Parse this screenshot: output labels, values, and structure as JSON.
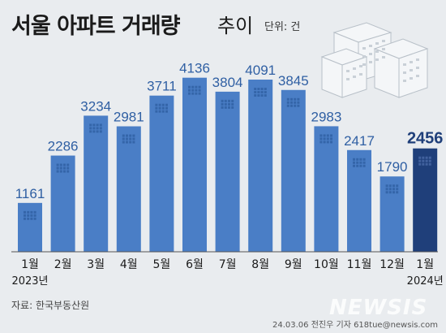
{
  "chart_data": {
    "type": "bar",
    "title": "서울 아파트 거래량",
    "subtitle": "추이",
    "unit": "단위: 건",
    "categories": [
      "1월",
      "2월",
      "3월",
      "4월",
      "5월",
      "6월",
      "7월",
      "8월",
      "9월",
      "10월",
      "11월",
      "12월",
      "1월"
    ],
    "year_labels": [
      "2023년",
      "",
      "",
      "",
      "",
      "",
      "",
      "",
      "",
      "",
      "",
      "",
      "2024년"
    ],
    "values": [
      1161,
      2286,
      3234,
      2981,
      3711,
      4136,
      3804,
      4091,
      3845,
      2983,
      2417,
      1790,
      2456
    ],
    "highlight_index": 12,
    "ylim": [
      0,
      4400
    ],
    "grid": false,
    "colors": {
      "bar": "#4a7ec6",
      "highlight": "#1f3f7a",
      "label": "#2f5fa3",
      "highlight_label": "#1f3f7a"
    }
  },
  "source": "자료: 한국부동산원",
  "credit": "24.03.06 전진우 기자 618tue@newsis.com",
  "watermark": "NEWSIS"
}
